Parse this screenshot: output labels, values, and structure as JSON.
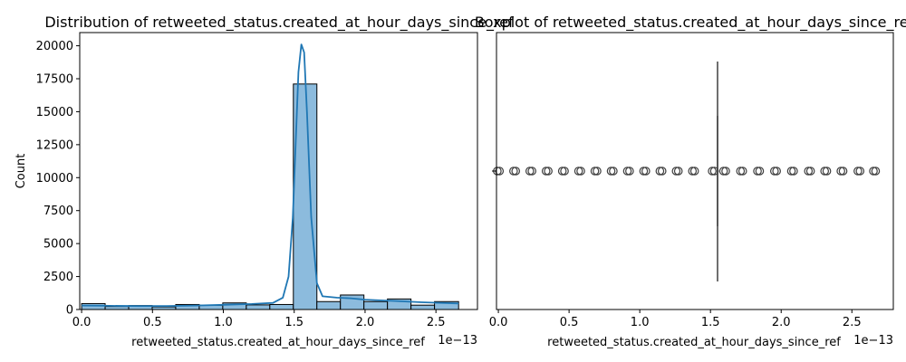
{
  "chart_data": [
    {
      "type": "bar",
      "subtype": "histogram-with-kde",
      "title": "Distribution of retweeted_status.created_at_hour_days_since_ref",
      "xlabel": "retweeted_status.created_at_hour_days_since_ref",
      "ylabel": "Count",
      "x_offset_label": "1e−13",
      "xlim": [
        -0.0133,
        2.793
      ],
      "ylim": [
        0,
        21000
      ],
      "xticks": [
        0.0,
        0.5,
        1.0,
        1.5,
        2.0,
        2.5
      ],
      "xtick_labels": [
        "0.0",
        "0.5",
        "1.0",
        "1.5",
        "2.0",
        "2.5"
      ],
      "yticks": [
        0,
        2500,
        5000,
        7500,
        10000,
        12500,
        15000,
        17500,
        20000
      ],
      "ytick_labels": [
        "0",
        "2500",
        "5000",
        "7500",
        "10000",
        "12500",
        "15000",
        "17500",
        "20000"
      ],
      "bin_edges": [
        0.0,
        0.166,
        0.332,
        0.498,
        0.664,
        0.83,
        0.996,
        1.162,
        1.328,
        1.494,
        1.66,
        1.826,
        1.992,
        2.158,
        2.324,
        2.49,
        2.66
      ],
      "values": [
        450,
        230,
        300,
        200,
        380,
        320,
        500,
        350,
        380,
        17100,
        600,
        1100,
        600,
        800,
        330,
        600
      ],
      "bar_color": "#8cbbdd",
      "edge_color": "#000000",
      "kde": {
        "color": "#1f77b4",
        "x": [
          0.0,
          0.2,
          0.4,
          0.6,
          0.8,
          1.0,
          1.2,
          1.35,
          1.42,
          1.46,
          1.49,
          1.51,
          1.53,
          1.55,
          1.57,
          1.59,
          1.62,
          1.66,
          1.7,
          1.8,
          1.9,
          2.0,
          2.2,
          2.4,
          2.66
        ],
        "y": [
          300,
          280,
          260,
          270,
          300,
          360,
          420,
          500,
          900,
          2500,
          7000,
          12500,
          18000,
          20100,
          19500,
          15000,
          7000,
          2000,
          1000,
          900,
          850,
          750,
          650,
          550,
          450
        ]
      },
      "grid": false,
      "legend": "none"
    },
    {
      "type": "boxplot",
      "title": "Boxplot of retweeted_status.created_at_hour_days_since_ref",
      "xlabel": "retweeted_status.created_at_hour_days_since_ref",
      "x_offset_label": "1e−13",
      "xlim": [
        -0.0133,
        2.793
      ],
      "xticks": [
        0.0,
        0.5,
        1.0,
        1.5,
        2.0,
        2.5
      ],
      "xtick_labels": [
        "0.0",
        "0.5",
        "1.0",
        "1.5",
        "2.0",
        "2.5"
      ],
      "median": 1.55,
      "q1": 1.55,
      "q3": 1.55,
      "whisker_low": 1.55,
      "whisker_high": 1.55,
      "outliers": [
        0.0,
        0.115,
        0.23,
        0.345,
        0.46,
        0.575,
        0.69,
        0.805,
        0.92,
        1.035,
        1.15,
        1.265,
        1.38,
        1.52,
        1.6,
        1.72,
        1.84,
        1.96,
        2.08,
        2.2,
        2.315,
        2.43,
        2.55,
        2.66
      ],
      "grid": false,
      "legend": "none"
    }
  ]
}
